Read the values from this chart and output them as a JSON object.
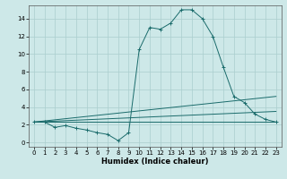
{
  "title": "",
  "xlabel": "Humidex (Indice chaleur)",
  "xlim": [
    -0.5,
    23.5
  ],
  "ylim": [
    -0.5,
    15.5
  ],
  "xticks": [
    0,
    1,
    2,
    3,
    4,
    5,
    6,
    7,
    8,
    9,
    10,
    11,
    12,
    13,
    14,
    15,
    16,
    17,
    18,
    19,
    20,
    21,
    22,
    23
  ],
  "yticks": [
    0,
    2,
    4,
    6,
    8,
    10,
    12,
    14
  ],
  "background_color": "#cde8e8",
  "grid_color": "#aacece",
  "line_color": "#1a6b6b",
  "series": [
    {
      "x": [
        0,
        1,
        2,
        3,
        4,
        5,
        6,
        7,
        8,
        9,
        10,
        11,
        12,
        13,
        14,
        15,
        16,
        17,
        18,
        19,
        20,
        21,
        22,
        23
      ],
      "y": [
        2.3,
        2.3,
        1.7,
        1.9,
        1.6,
        1.4,
        1.1,
        0.9,
        0.2,
        1.1,
        10.5,
        13.0,
        12.8,
        13.5,
        15.0,
        15.0,
        14.0,
        12.0,
        8.5,
        5.2,
        4.5,
        3.2,
        2.6,
        2.3
      ],
      "marker": true
    },
    {
      "x": [
        0,
        23
      ],
      "y": [
        2.3,
        2.3
      ],
      "marker": false
    },
    {
      "x": [
        0,
        23
      ],
      "y": [
        2.3,
        3.5
      ],
      "marker": false
    },
    {
      "x": [
        0,
        23
      ],
      "y": [
        2.3,
        5.2
      ],
      "marker": false
    }
  ],
  "xlabel_fontsize": 6,
  "tick_fontsize": 5
}
